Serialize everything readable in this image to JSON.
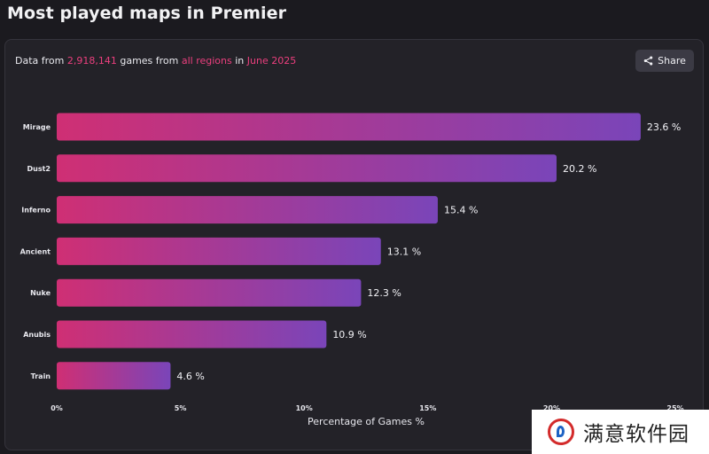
{
  "header": {
    "title": "Most played maps in Premier"
  },
  "subtitle": {
    "part1": "Data from ",
    "games": "2,918,141",
    "part2": " games from ",
    "regions": "all regions",
    "part3": " in ",
    "period": "June 2025"
  },
  "share": {
    "label": "Share",
    "icon": "share-icon"
  },
  "colors": {
    "accent": "#ec3f7e",
    "bar_start": "#cf2f74",
    "bar_end": "#7a45b9",
    "background": "#1b1a1f",
    "card": "#232228"
  },
  "chart_data": {
    "type": "bar",
    "orientation": "horizontal",
    "categories": [
      "Mirage",
      "Dust2",
      "Inferno",
      "Ancient",
      "Nuke",
      "Anubis",
      "Train"
    ],
    "values": [
      23.6,
      20.2,
      15.4,
      13.1,
      12.3,
      10.9,
      4.6
    ],
    "value_labels": [
      "23.6 %",
      "20.2 %",
      "15.4 %",
      "13.1 %",
      "12.3 %",
      "10.9 %",
      "4.6 %"
    ],
    "xlabel": "Percentage of Games %",
    "xlim": [
      0,
      25
    ],
    "xticks": [
      0,
      5,
      10,
      15,
      20,
      25
    ],
    "xtick_labels": [
      "0%",
      "5%",
      "10%",
      "15%",
      "20%",
      "25%"
    ],
    "grid": false,
    "legend": false
  },
  "watermark": {
    "text": "满意软件园"
  }
}
